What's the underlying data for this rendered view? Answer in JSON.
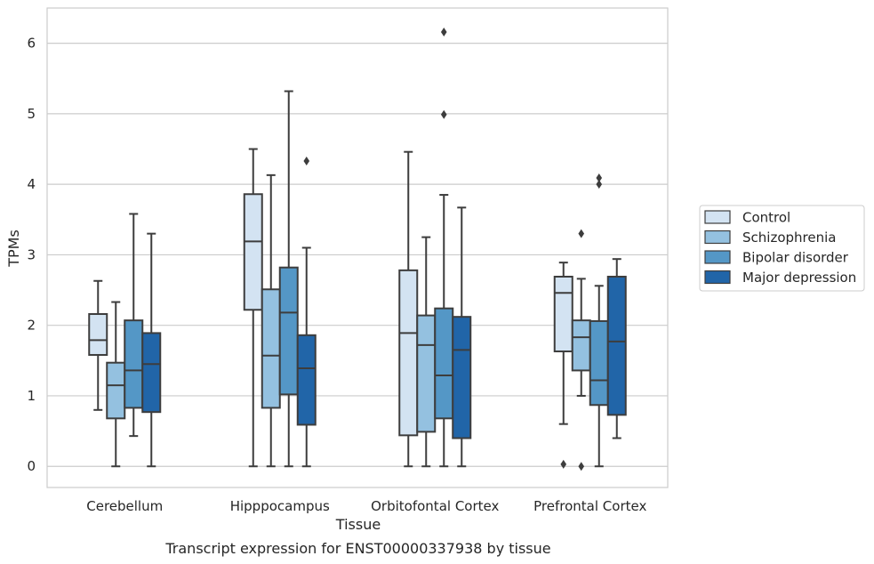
{
  "chart_data": {
    "type": "boxplot",
    "caption": "Transcript expression for ENST00000337938 by tissue",
    "xlabel": "Tissue",
    "ylabel": "TPMs",
    "ylim": [
      -0.3,
      6.5
    ],
    "yticks": [
      0,
      1,
      2,
      3,
      4,
      5,
      6
    ],
    "grid": "horizontal",
    "legend_position": "right",
    "categories": [
      "Cerebellum",
      "Hipppocampus",
      "Orbitofontal Cortex",
      "Prefrontal Cortex"
    ],
    "series": [
      {
        "name": "Control",
        "color": "#d3e3f2",
        "boxes": [
          {
            "whislo": 0.8,
            "q1": 1.58,
            "med": 1.79,
            "q3": 2.16,
            "whishi": 2.63,
            "fliers": []
          },
          {
            "whislo": 0.0,
            "q1": 2.22,
            "med": 3.19,
            "q3": 3.86,
            "whishi": 4.5,
            "fliers": []
          },
          {
            "whislo": 0.0,
            "q1": 0.44,
            "med": 1.89,
            "q3": 2.78,
            "whishi": 4.46,
            "fliers": []
          },
          {
            "whislo": 0.6,
            "q1": 1.63,
            "med": 2.46,
            "q3": 2.69,
            "whishi": 2.89,
            "fliers": [
              0.03
            ]
          }
        ]
      },
      {
        "name": "Schizophrenia",
        "color": "#94c1e0",
        "boxes": [
          {
            "whislo": 0.0,
            "q1": 0.68,
            "med": 1.15,
            "q3": 1.47,
            "whishi": 2.33,
            "fliers": []
          },
          {
            "whislo": 0.0,
            "q1": 0.83,
            "med": 1.57,
            "q3": 2.51,
            "whishi": 4.13,
            "fliers": []
          },
          {
            "whislo": 0.0,
            "q1": 0.49,
            "med": 1.72,
            "q3": 2.14,
            "whishi": 3.25,
            "fliers": []
          },
          {
            "whislo": 1.0,
            "q1": 1.36,
            "med": 1.83,
            "q3": 2.07,
            "whishi": 2.66,
            "fliers": [
              3.3,
              0.0
            ]
          }
        ]
      },
      {
        "name": "Bipolar disorder",
        "color": "#5497c6",
        "boxes": [
          {
            "whislo": 0.43,
            "q1": 0.83,
            "med": 1.36,
            "q3": 2.07,
            "whishi": 3.58,
            "fliers": []
          },
          {
            "whislo": 0.0,
            "q1": 1.02,
            "med": 2.18,
            "q3": 2.82,
            "whishi": 5.32,
            "fliers": []
          },
          {
            "whislo": 0.0,
            "q1": 0.68,
            "med": 1.29,
            "q3": 2.24,
            "whishi": 3.85,
            "fliers": [
              4.99,
              6.16
            ]
          },
          {
            "whislo": 0.0,
            "q1": 0.87,
            "med": 1.22,
            "q3": 2.06,
            "whishi": 2.56,
            "fliers": [
              4.0,
              4.09
            ]
          }
        ]
      },
      {
        "name": "Major depression",
        "color": "#2165a8",
        "boxes": [
          {
            "whislo": 0.0,
            "q1": 0.77,
            "med": 1.45,
            "q3": 1.89,
            "whishi": 3.3,
            "fliers": []
          },
          {
            "whislo": 0.0,
            "q1": 0.59,
            "med": 1.39,
            "q3": 1.86,
            "whishi": 3.1,
            "fliers": [
              4.33
            ]
          },
          {
            "whislo": 0.0,
            "q1": 0.4,
            "med": 1.65,
            "q3": 2.12,
            "whishi": 3.67,
            "fliers": []
          },
          {
            "whislo": 0.4,
            "q1": 0.73,
            "med": 1.77,
            "q3": 2.69,
            "whishi": 2.94,
            "fliers": []
          }
        ]
      }
    ]
  }
}
